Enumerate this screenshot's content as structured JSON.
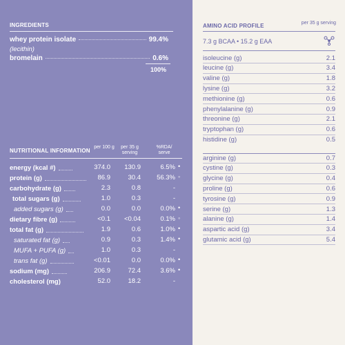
{
  "ingredients": {
    "title": "INGREDIENTS",
    "items": [
      {
        "name": "whey protein isolate",
        "value": "99.4%",
        "sub": "(lecithin)"
      },
      {
        "name": "bromelain",
        "value": "0.6%"
      }
    ],
    "total": "100%"
  },
  "nutrition": {
    "title": "NUTRITIONAL INFORMATION",
    "col1": "per 100 g",
    "col2": "per 35 g serving",
    "col3": "%RDA/ serve",
    "rows": [
      {
        "name": "energy (kcal #)",
        "per100": "374.0",
        "serve": "130.9",
        "rda": "6.5%",
        "mark": "•"
      },
      {
        "name": "protein (g)",
        "per100": "86.9",
        "serve": "30.4",
        "rda": "56.3%",
        "mark": "◦"
      },
      {
        "name": "carbohydrate (g)",
        "per100": "2.3",
        "serve": "0.8",
        "rda": "-",
        "mark": ""
      },
      {
        "name": "total sugars (g)",
        "per100": "1.0",
        "serve": "0.3",
        "rda": "-",
        "mark": ""
      },
      {
        "name": "added sugars (g)",
        "per100": "0.0",
        "serve": "0.0",
        "rda": "0.0%",
        "mark": "•"
      },
      {
        "name": "dietary fibre (g)",
        "per100": "<0.1",
        "serve": "<0.04",
        "rda": "0.1%",
        "mark": "◦"
      },
      {
        "name": "total fat (g)",
        "per100": "1.9",
        "serve": "0.6",
        "rda": "1.0%",
        "mark": "•"
      },
      {
        "name": "saturated fat (g)",
        "per100": "0.9",
        "serve": "0.3",
        "rda": "1.4%",
        "mark": "•"
      },
      {
        "name": "MUFA + PUFA (g)",
        "per100": "1.0",
        "serve": "0.3",
        "rda": "-",
        "mark": ""
      },
      {
        "name": "trans fat (g)",
        "per100": "<0.01",
        "serve": "0.0",
        "rda": "0.0%",
        "mark": "•"
      },
      {
        "name": "sodium (mg)",
        "per100": "206.9",
        "serve": "72.4",
        "rda": "3.6%",
        "mark": "•"
      },
      {
        "name": "cholesterol (mg)",
        "per100": "52.0",
        "serve": "18.2",
        "rda": "-",
        "mark": ""
      }
    ]
  },
  "amino": {
    "title": "AMINO ACID PROFILE",
    "serving": "per 35 g serving",
    "summary": "7.3 g BCAA  •  15.2 g EAA",
    "icon": "molecule-icon",
    "essential": [
      {
        "name": "isoleucine (g)",
        "value": "2.1"
      },
      {
        "name": "leucine (g)",
        "value": "3.4"
      },
      {
        "name": "valine (g)",
        "value": "1.8"
      },
      {
        "name": "lysine (g)",
        "value": "3.2"
      },
      {
        "name": "methionine (g)",
        "value": "0.6"
      },
      {
        "name": "phenylalanine (g)",
        "value": "0.9"
      },
      {
        "name": "threonine (g)",
        "value": "2.1"
      },
      {
        "name": "tryptophan (g)",
        "value": "0.6"
      },
      {
        "name": "histidine (g)",
        "value": "0.5"
      }
    ],
    "nonessential": [
      {
        "name": "arginine (g)",
        "value": "0.7"
      },
      {
        "name": "cystine (g)",
        "value": "0.3"
      },
      {
        "name": "glycine (g)",
        "value": "0.4"
      },
      {
        "name": "proline (g)",
        "value": "0.6"
      },
      {
        "name": "tyrosine (g)",
        "value": "0.9"
      },
      {
        "name": "serine (g)",
        "value": "1.3"
      },
      {
        "name": "alanine (g)",
        "value": "1.4"
      },
      {
        "name": "aspartic acid (g)",
        "value": "3.4"
      },
      {
        "name": "glutamic acid (g)",
        "value": "5.4"
      }
    ]
  },
  "colors": {
    "left_bg": "#8a88bb",
    "right_bg": "#f5f2ec",
    "right_text": "#6a67a8"
  }
}
